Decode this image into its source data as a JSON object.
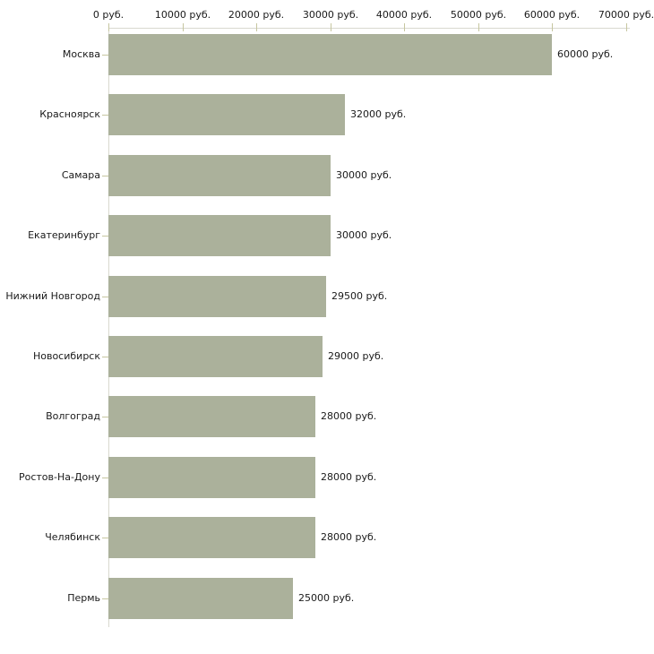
{
  "chart_data": {
    "type": "bar",
    "orientation": "horizontal",
    "title": "",
    "xlabel": "",
    "ylabel": "",
    "unit": "руб.",
    "xlim": [
      0,
      70000
    ],
    "grid": false,
    "legend": false,
    "x_tick_values": [
      0,
      10000,
      20000,
      30000,
      40000,
      50000,
      60000,
      70000
    ],
    "x_tick_labels": [
      "0 руб.",
      "10000 руб.",
      "20000 руб.",
      "30000 руб.",
      "40000 руб.",
      "50000 руб.",
      "60000 руб.",
      "70000 руб."
    ],
    "categories": [
      "Москва",
      "Красноярск",
      "Самара",
      "Екатеринбург",
      "Нижний Новгород",
      "Новосибирск",
      "Волгоград",
      "Ростов-На-Дону",
      "Челябинск",
      "Пермь"
    ],
    "values": [
      60000,
      32000,
      30000,
      30000,
      29500,
      29000,
      28000,
      28000,
      28000,
      25000
    ],
    "value_labels": [
      "60000 руб.",
      "32000 руб.",
      "30000 руб.",
      "30000 руб.",
      "29500 руб.",
      "29000 руб.",
      "28000 руб.",
      "28000 руб.",
      "28000 руб.",
      "25000 руб."
    ],
    "colors": {
      "bar": "#abb19b",
      "axis_line": "#d8d8cf",
      "tick": "#c6c6a0",
      "text": "#1a1a1a",
      "background": "#ffffff"
    }
  }
}
